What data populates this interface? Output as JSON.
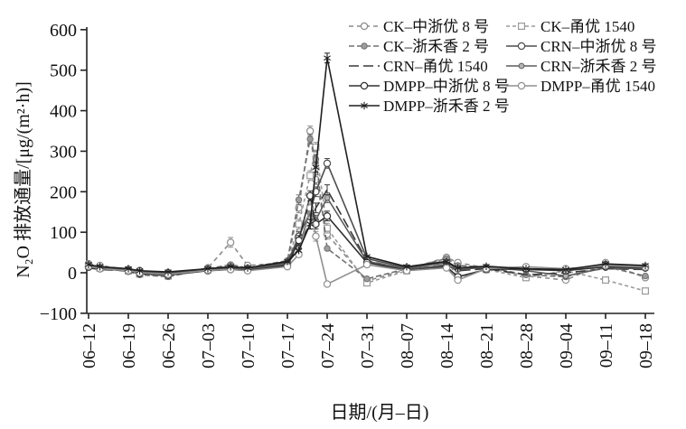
{
  "figure": {
    "y_axis_title": "N₂O 排放通量/[μg/(m²·h)]",
    "x_axis_title": "日期/(月–日)"
  },
  "chart_data": {
    "type": "line",
    "title": "",
    "ylabel": "N₂O 排放通量/[μg/(m²·h)]",
    "xlabel": "日期/(月–日)",
    "ylim": [
      -100,
      600
    ],
    "y_ticks": [
      -100,
      0,
      100,
      200,
      300,
      400,
      500,
      600
    ],
    "x_tick_labels": [
      "06–12",
      "06–19",
      "06–26",
      "07–03",
      "07–10",
      "07–17",
      "07–24",
      "07–31",
      "08–07",
      "08–14",
      "08–21",
      "08–28",
      "09–04",
      "09–11",
      "09–18"
    ],
    "x_tick_days": [
      0,
      7,
      14,
      21,
      28,
      35,
      42,
      49,
      56,
      63,
      70,
      77,
      84,
      91,
      98
    ],
    "grid": false,
    "legend_position": "top-right-two-columns",
    "axis_color": "#222222",
    "error_bar_units": 12,
    "error_bar_threshold": 70,
    "x_dates": [
      "06–12",
      "06–14",
      "06–19",
      "06–21",
      "06–26",
      "07–03",
      "07–07",
      "07–10",
      "07–17",
      "07–19",
      "07–21",
      "07–22",
      "07–24",
      "07–31",
      "08–07",
      "08–14",
      "08–16",
      "08–21",
      "08–28",
      "09–04",
      "09–11",
      "09–18"
    ],
    "x_days": [
      0,
      2,
      7,
      9,
      14,
      21,
      25,
      28,
      35,
      37,
      39,
      40,
      42,
      49,
      56,
      63,
      65,
      70,
      77,
      84,
      91,
      98
    ],
    "series": [
      {
        "name": "CK–中浙优 8 号",
        "color": "#8c8c8c",
        "dash": "5 4",
        "marker": "circle-open",
        "values": [
          22,
          18,
          8,
          2,
          -6,
          12,
          75,
          18,
          25,
          160,
          350,
          230,
          95,
          -20,
          8,
          38,
          25,
          12,
          -8,
          -18,
          25,
          -12
        ]
      },
      {
        "name": "CK–甬优 1540",
        "color": "#9a9a9a",
        "dash": "4 3",
        "marker": "square-open",
        "values": [
          18,
          12,
          5,
          -3,
          -8,
          8,
          15,
          10,
          20,
          120,
          240,
          310,
          110,
          -25,
          5,
          32,
          -12,
          8,
          -12,
          5,
          -18,
          -45
        ]
      },
      {
        "name": "CK–浙禾香 2 号",
        "color": "#707070",
        "dash": "6 3",
        "marker": "circle-gray",
        "values": [
          20,
          14,
          3,
          -5,
          -10,
          10,
          20,
          12,
          30,
          180,
          330,
          280,
          60,
          -15,
          10,
          35,
          18,
          14,
          -5,
          -10,
          15,
          -8
        ]
      },
      {
        "name": "CRN–中浙优 8 号",
        "color": "#4d4d4d",
        "dash": "",
        "marker": "circle-open",
        "values": [
          15,
          10,
          8,
          5,
          0,
          8,
          12,
          10,
          25,
          90,
          150,
          200,
          270,
          35,
          12,
          25,
          10,
          12,
          8,
          5,
          20,
          15
        ]
      },
      {
        "name": "CRN–甬优 1540",
        "color": "#383838",
        "dash": "11 5",
        "marker": "none",
        "values": [
          12,
          8,
          5,
          0,
          -5,
          5,
          10,
          8,
          20,
          70,
          120,
          160,
          205,
          30,
          8,
          20,
          5,
          10,
          -5,
          0,
          10,
          8
        ]
      },
      {
        "name": "CRN–浙禾香 2 号",
        "color": "#5c5c5c",
        "dash": "",
        "marker": "dot-gray",
        "values": [
          18,
          12,
          6,
          2,
          -3,
          6,
          10,
          8,
          22,
          60,
          155,
          130,
          185,
          28,
          10,
          18,
          8,
          14,
          5,
          -8,
          12,
          10
        ]
      },
      {
        "name": "DMPP–中浙优 8 号",
        "color": "#303030",
        "dash": "",
        "marker": "circle-open",
        "values": [
          14,
          10,
          4,
          -2,
          -6,
          5,
          8,
          6,
          18,
          80,
          190,
          120,
          140,
          25,
          6,
          15,
          -10,
          8,
          10,
          5,
          15,
          12
        ]
      },
      {
        "name": "DMPP–甬优 1540",
        "color": "#8f8f8f",
        "dash": "",
        "marker": "circle-open",
        "values": [
          16,
          10,
          5,
          0,
          -4,
          6,
          8,
          5,
          15,
          45,
          160,
          90,
          -28,
          20,
          5,
          12,
          -18,
          10,
          15,
          10,
          18,
          14
        ]
      },
      {
        "name": "DMPP–浙禾香 2 号",
        "color": "#1f1f1f",
        "dash": "",
        "marker": "star",
        "values": [
          20,
          15,
          10,
          5,
          2,
          10,
          15,
          12,
          28,
          55,
          120,
          260,
          530,
          40,
          15,
          28,
          12,
          16,
          10,
          8,
          22,
          18
        ]
      }
    ]
  }
}
